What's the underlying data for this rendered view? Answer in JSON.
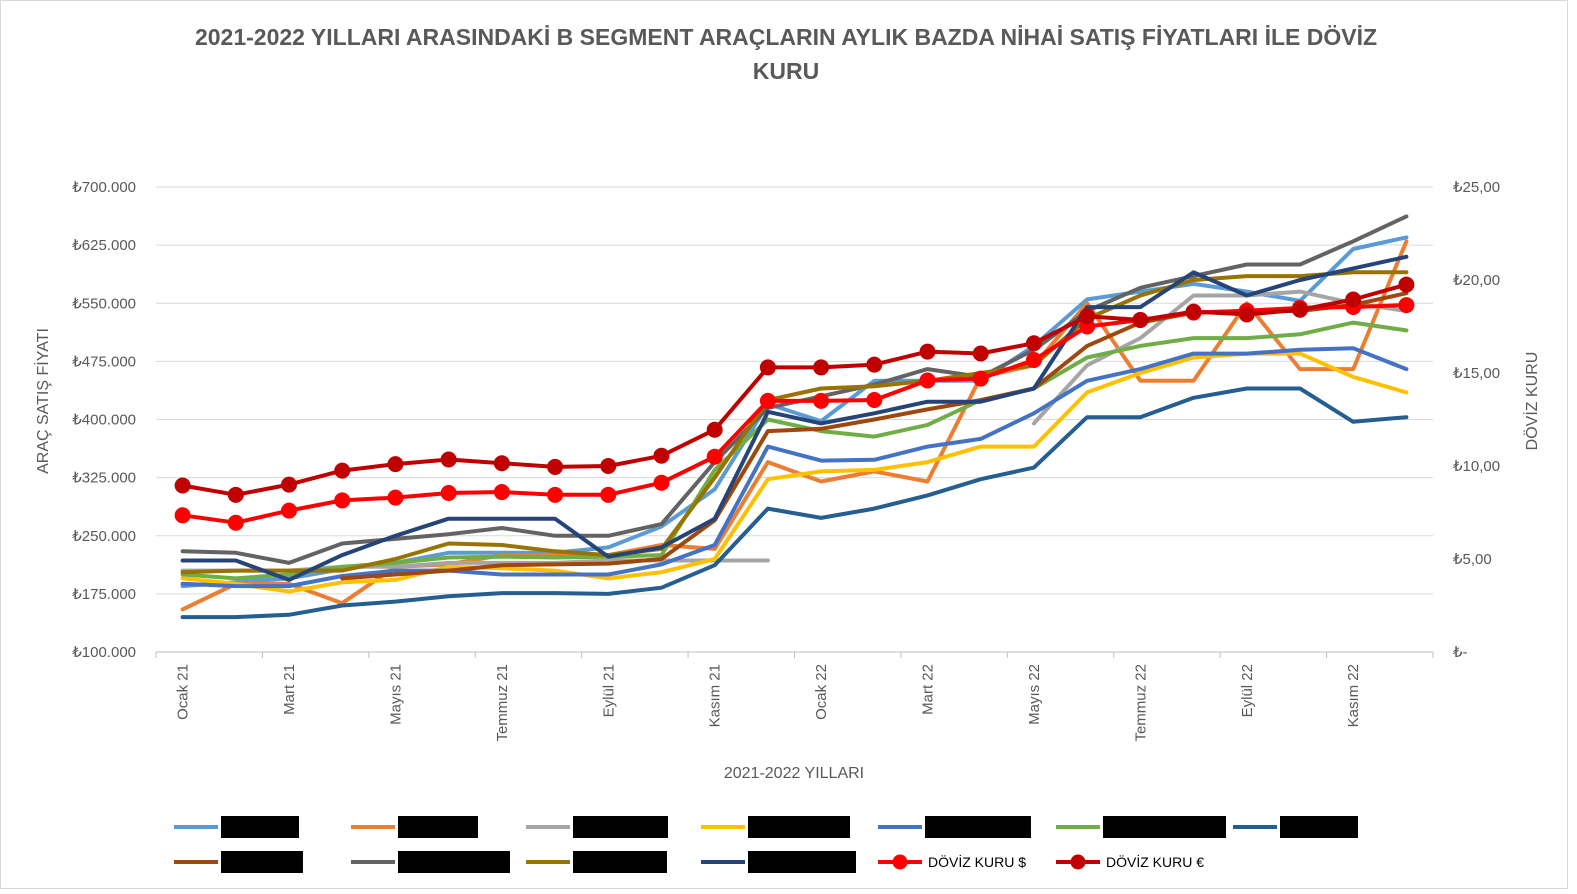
{
  "chart_data": {
    "type": "line",
    "title_lines": [
      "2021-2022 YILLARI ARASINDAKİ B SEGMENT ARAÇLARIN AYLIK BAZDA NİHAİ SATIŞ FİYATLARI İLE DÖVİZ",
      "KURU"
    ],
    "xlabel": "2021-2022 YILLARI",
    "ylabel_left": "ARAÇ SATIŞ FİYATI",
    "ylabel_right": "DÖVİZ KURU",
    "x_tick_labels": [
      "Ocak 21",
      "Mart 21",
      "Mayıs 21",
      "Temmuz 21",
      "Eylül 21",
      "Kasım 21",
      "Ocak 22",
      "Mart 22",
      "Mayıs 22",
      "Temmuz 22",
      "Eylül 22",
      "Kasım 22"
    ],
    "months_count": 24,
    "ylim_left": [
      100000,
      700000
    ],
    "y_ticks_left": [
      "₺100.000",
      "₺175.000",
      "₺250.000",
      "₺325.000",
      "₺400.000",
      "₺475.000",
      "₺550.000",
      "₺625.000",
      "₺700.000"
    ],
    "ylim_right": [
      0,
      25
    ],
    "y_ticks_right": [
      "₺-",
      "₺5,00",
      "₺10,00",
      "₺15,00",
      "₺20,00",
      "₺25,00"
    ],
    "grid": "horizontal",
    "legend_position": "bottom",
    "series": [
      {
        "color": "#5b9bd5",
        "axis": "left",
        "values": [
          185000,
          190000,
          195000,
          207000,
          215000,
          228000,
          228000,
          228000,
          235000,
          262000,
          310000,
          420000,
          398000,
          450000,
          450000,
          450000,
          495000,
          555000,
          565000,
          575000,
          565000,
          553000,
          620000,
          635000
        ]
      },
      {
        "color": "#ed7d31",
        "axis": "left",
        "values": [
          155000,
          188000,
          188000,
          163000,
          210000,
          213000,
          225000,
          225000,
          225000,
          238000,
          233000,
          345000,
          320000,
          333000,
          320000,
          455000,
          470000,
          550000,
          450000,
          450000,
          550000,
          465000,
          465000,
          630000
        ]
      },
      {
        "color": "#a5a5a5",
        "axis": "left",
        "values": [
          205000,
          205000,
          205000,
          210000,
          210000,
          215000,
          215000,
          215000,
          218000,
          218000,
          218000,
          218000,
          null,
          null,
          null,
          null,
          395000,
          470000,
          505000,
          560000,
          560000,
          565000,
          550000,
          540000
        ]
      },
      {
        "color": "#ffc000",
        "axis": "left",
        "values": [
          195000,
          188000,
          178000,
          190000,
          193000,
          210000,
          208000,
          205000,
          195000,
          203000,
          220000,
          323000,
          333000,
          335000,
          345000,
          365000,
          365000,
          435000,
          460000,
          480000,
          485000,
          485000,
          455000,
          435000
        ]
      },
      {
        "color": "#4472c4",
        "axis": "left",
        "values": [
          188000,
          185000,
          185000,
          198000,
          205000,
          205000,
          200000,
          200000,
          200000,
          213000,
          238000,
          365000,
          347000,
          348000,
          365000,
          375000,
          408000,
          450000,
          465000,
          485000,
          485000,
          490000,
          492000,
          465000
        ]
      },
      {
        "color": "#70ad47",
        "axis": "left",
        "values": [
          200000,
          195000,
          200000,
          210000,
          215000,
          222000,
          223000,
          222000,
          223000,
          225000,
          335000,
          400000,
          385000,
          378000,
          393000,
          425000,
          440000,
          480000,
          495000,
          505000,
          505000,
          510000,
          525000,
          515000
        ]
      },
      {
        "color": "#255e91",
        "axis": "left",
        "values": [
          145000,
          145000,
          148000,
          160000,
          165000,
          172000,
          176000,
          176000,
          175000,
          183000,
          212000,
          285000,
          273000,
          285000,
          302000,
          323000,
          338000,
          403000,
          403000,
          428000,
          440000,
          440000,
          397000,
          403000
        ]
      },
      {
        "color": "#9e480e",
        "axis": "left",
        "values": [
          null,
          null,
          null,
          195000,
          200000,
          205000,
          212000,
          213000,
          214000,
          220000,
          270000,
          385000,
          388000,
          400000,
          413000,
          425000,
          440000,
          495000,
          525000,
          538000,
          540000,
          540000,
          548000,
          563000
        ]
      },
      {
        "color": "#636363",
        "axis": "left",
        "values": [
          230000,
          228000,
          215000,
          240000,
          246000,
          252000,
          260000,
          250000,
          250000,
          265000,
          345000,
          415000,
          430000,
          445000,
          465000,
          455000,
          490000,
          540000,
          570000,
          585000,
          600000,
          600000,
          630000,
          662000
        ]
      },
      {
        "color": "#997300",
        "axis": "left",
        "values": [
          203000,
          205000,
          205000,
          205000,
          220000,
          240000,
          238000,
          230000,
          225000,
          233000,
          325000,
          425000,
          440000,
          443000,
          450000,
          460000,
          470000,
          530000,
          560000,
          580000,
          585000,
          585000,
          590000,
          590000
        ]
      },
      {
        "color": "#264478",
        "axis": "left",
        "values": [
          218000,
          218000,
          193000,
          225000,
          250000,
          272000,
          272000,
          272000,
          223000,
          235000,
          272000,
          410000,
          395000,
          408000,
          423000,
          423000,
          440000,
          545000,
          545000,
          590000,
          560000,
          580000,
          595000,
          610000
        ]
      },
      {
        "name": "DÖVİZ KURU $",
        "color": "#ff0000",
        "axis": "right",
        "marker": true,
        "values": [
          7.35,
          6.95,
          7.6,
          8.15,
          8.3,
          8.55,
          8.6,
          8.45,
          8.45,
          9.1,
          10.5,
          13.5,
          13.5,
          13.55,
          14.6,
          14.7,
          15.7,
          17.5,
          17.85,
          18.25,
          18.35,
          18.5,
          18.55,
          18.65
        ]
      },
      {
        "name": "DÖVİZ KURU €",
        "color": "#c00000",
        "axis": "right",
        "marker": true,
        "values": [
          8.95,
          8.45,
          9.0,
          9.75,
          10.1,
          10.35,
          10.15,
          9.95,
          10.0,
          10.55,
          11.95,
          15.3,
          15.3,
          15.45,
          16.15,
          16.05,
          16.6,
          18.05,
          17.85,
          18.3,
          18.15,
          18.4,
          18.95,
          19.75
        ]
      }
    ]
  }
}
